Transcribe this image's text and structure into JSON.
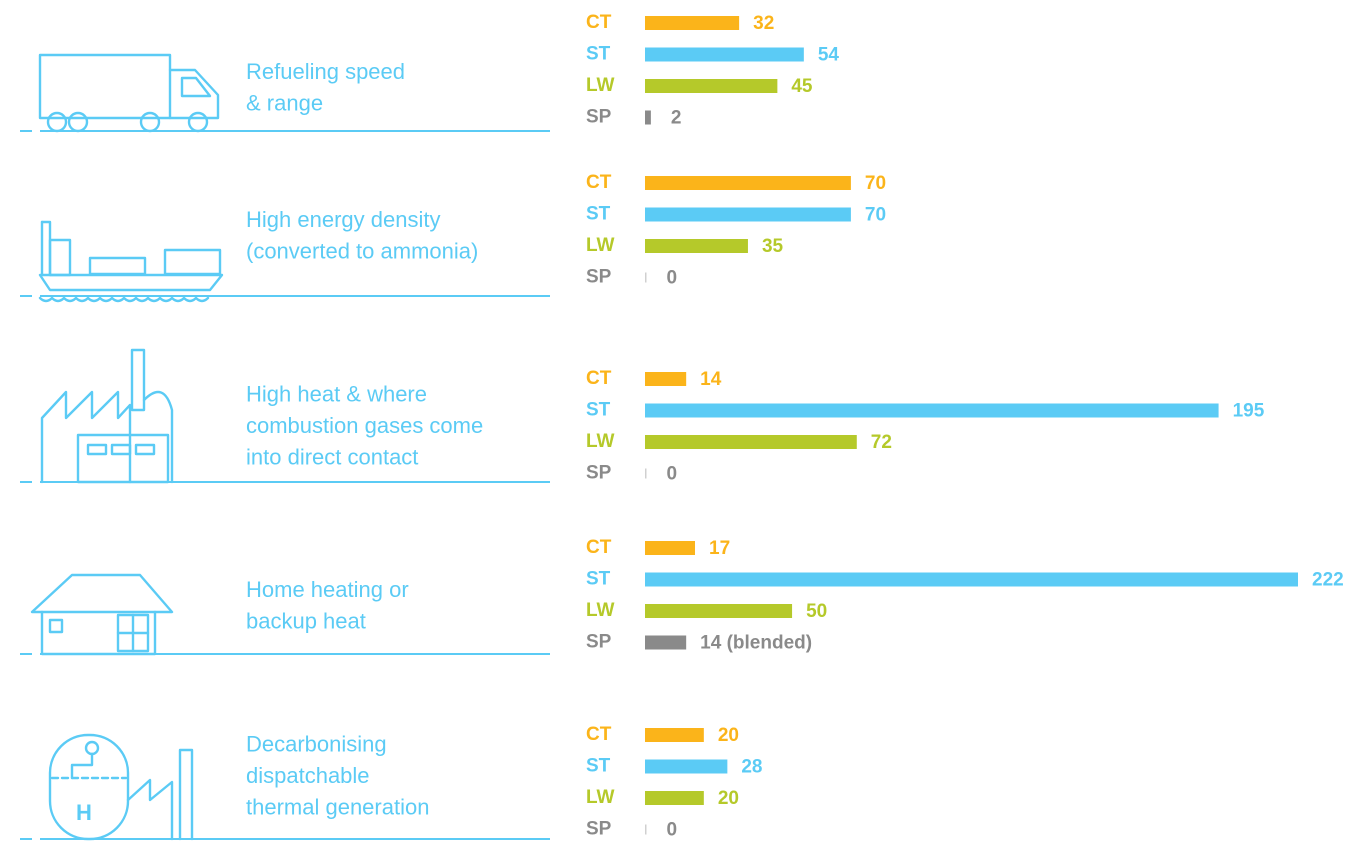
{
  "chart_data": [
    {
      "type": "bar",
      "orientation": "horizontal",
      "title": [
        "Refueling speed",
        "& range"
      ],
      "categories": [
        "CT",
        "ST",
        "LW",
        "SP"
      ],
      "colors": [
        "#fbb41a",
        "#5bcbf5",
        "#b5c92a",
        "#8a8a8a"
      ],
      "values": [
        32,
        54,
        45,
        2
      ]
    },
    {
      "type": "bar",
      "orientation": "horizontal",
      "title": [
        "High energy density",
        "(converted to ammonia)"
      ],
      "categories": [
        "CT",
        "ST",
        "LW",
        "SP"
      ],
      "colors": [
        "#fbb41a",
        "#5bcbf5",
        "#b5c92a",
        "#8a8a8a"
      ],
      "values": [
        70,
        70,
        35,
        0
      ]
    },
    {
      "type": "bar",
      "orientation": "horizontal",
      "title": [
        "High heat & where",
        "combustion gases come",
        "into direct contact"
      ],
      "categories": [
        "CT",
        "ST",
        "LW",
        "SP"
      ],
      "colors": [
        "#fbb41a",
        "#5bcbf5",
        "#b5c92a",
        "#8a8a8a"
      ],
      "values": [
        14,
        195,
        72,
        0
      ]
    },
    {
      "type": "bar",
      "orientation": "horizontal",
      "title": [
        "Home heating or",
        "backup heat"
      ],
      "categories": [
        "CT",
        "ST",
        "LW",
        "SP"
      ],
      "colors": [
        "#fbb41a",
        "#5bcbf5",
        "#b5c92a",
        "#8a8a8a"
      ],
      "values": [
        17,
        222,
        50,
        14
      ],
      "value_labels": [
        null,
        null,
        null,
        "14 (blended)"
      ]
    },
    {
      "type": "bar",
      "orientation": "horizontal",
      "title": [
        "Decarbonising",
        "dispatchable",
        "thermal generation"
      ],
      "categories": [
        "CT",
        "ST",
        "LW",
        "SP"
      ],
      "colors": [
        "#fbb41a",
        "#5bcbf5",
        "#b5c92a",
        "#8a8a8a"
      ],
      "values": [
        20,
        28,
        20,
        0
      ]
    }
  ]
}
